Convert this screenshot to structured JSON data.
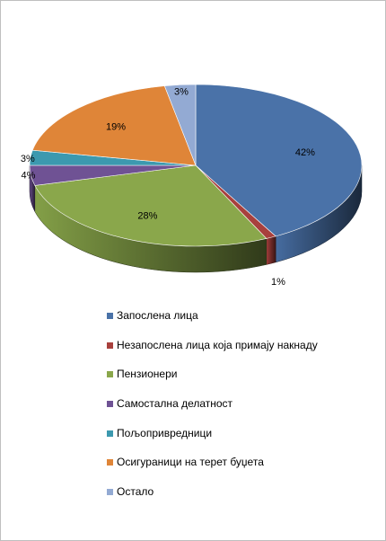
{
  "chart_data": {
    "type": "pie",
    "title": "",
    "categories": [
      "Запослена лица",
      "Незапослена лица која примају накнаду",
      "Пензионери",
      "Самостална делатност",
      "Пољопривредници",
      "Осигураници на терет буџета",
      "Остало"
    ],
    "values": [
      42,
      1,
      28,
      4,
      3,
      19,
      3
    ],
    "value_labels": [
      "42%",
      "1%",
      "28%",
      "4%",
      "3%",
      "19%",
      "3%"
    ],
    "colors": [
      "#4A72A8",
      "#A8403D",
      "#8AA74B",
      "#6F5294",
      "#3C99AF",
      "#DF8538",
      "#93AAD3"
    ],
    "three_d": true,
    "legend_position": "bottom",
    "grid": false
  }
}
